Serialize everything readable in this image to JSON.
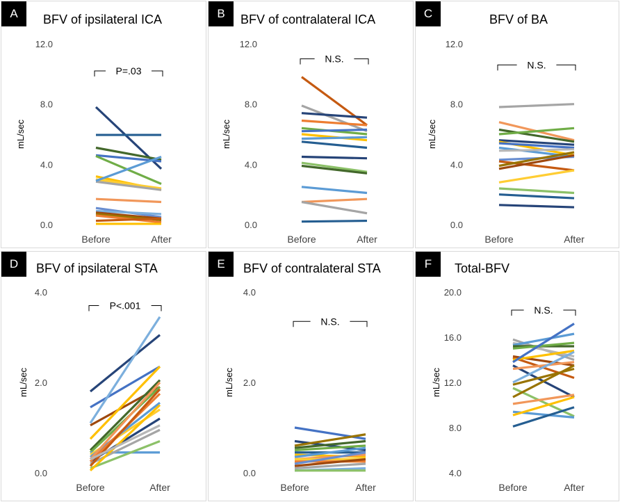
{
  "colors": [
    "#4472C4",
    "#ED7D31",
    "#A5A5A5",
    "#FFC000",
    "#5B9BD5",
    "#70AD47",
    "#264478",
    "#9E480E",
    "#636363",
    "#997300",
    "#255E91",
    "#43682B",
    "#698ED0",
    "#F1975A",
    "#B7B7B7",
    "#FFCD33",
    "#7CAFDD",
    "#8CC168"
  ],
  "chart_data": [
    {
      "id": "A",
      "letter": "A",
      "type": "line",
      "title": "BFV of ipsilateral ICA",
      "ylabel": "mL/sec",
      "categories": [
        "Before",
        "After"
      ],
      "ylim": [
        0,
        12
      ],
      "yticks": [
        "0.0",
        "4.0",
        "8.0",
        "12.0"
      ],
      "ytick_values": [
        0,
        4,
        8,
        12
      ],
      "annotation": "P=.03",
      "annotation_y": 10.2,
      "series": [
        {
          "values": [
            7.8,
            3.7
          ],
          "color": "#264478"
        },
        {
          "values": [
            5.95,
            5.95
          ],
          "color": "#255E91"
        },
        {
          "values": [
            5.1,
            4.3
          ],
          "color": "#43682B"
        },
        {
          "values": [
            4.6,
            4.2
          ],
          "color": "#4472C4"
        },
        {
          "values": [
            4.55,
            2.7
          ],
          "color": "#70AD47"
        },
        {
          "values": [
            3.2,
            2.3
          ],
          "color": "#FFC000"
        },
        {
          "values": [
            3.0,
            2.4
          ],
          "color": "#FFCD33"
        },
        {
          "values": [
            2.85,
            2.3
          ],
          "color": "#A5A5A5"
        },
        {
          "values": [
            2.9,
            4.5
          ],
          "color": "#5B9BD5"
        },
        {
          "values": [
            1.7,
            1.5
          ],
          "color": "#F1975A"
        },
        {
          "values": [
            1.1,
            0.5
          ],
          "color": "#698ED0"
        },
        {
          "values": [
            0.9,
            0.7
          ],
          "color": "#7CAFDD"
        },
        {
          "values": [
            0.8,
            0.4
          ],
          "color": "#9E480E"
        },
        {
          "values": [
            0.7,
            0.3
          ],
          "color": "#997300"
        },
        {
          "values": [
            0.6,
            0.15
          ],
          "color": "#ED7D31"
        },
        {
          "values": [
            0.25,
            0.4
          ],
          "color": "#C55A11"
        },
        {
          "values": [
            0.05,
            0.05
          ],
          "color": "#FFC000"
        }
      ]
    },
    {
      "id": "B",
      "letter": "B",
      "type": "line",
      "title": "BFV of contralateral ICA",
      "ylabel": "mL/sec",
      "categories": [
        "Before",
        "After"
      ],
      "ylim": [
        0,
        12
      ],
      "yticks": [
        "0.0",
        "4.0",
        "8.0",
        "12.0"
      ],
      "ytick_values": [
        0,
        4,
        8,
        12
      ],
      "annotation": "N.S.",
      "annotation_y": 11.0,
      "series": [
        {
          "values": [
            9.8,
            6.6
          ],
          "color": "#C55A11"
        },
        {
          "values": [
            7.9,
            6.2
          ],
          "color": "#A5A5A5"
        },
        {
          "values": [
            7.4,
            7.1
          ],
          "color": "#264478"
        },
        {
          "values": [
            6.9,
            6.6
          ],
          "color": "#ED7D31"
        },
        {
          "values": [
            6.4,
            6.0
          ],
          "color": "#70AD47"
        },
        {
          "values": [
            6.2,
            6.3
          ],
          "color": "#4472C4"
        },
        {
          "values": [
            6.0,
            5.6
          ],
          "color": "#FFC000"
        },
        {
          "values": [
            5.7,
            5.8
          ],
          "color": "#5B9BD5"
        },
        {
          "values": [
            5.5,
            5.1
          ],
          "color": "#255E91"
        },
        {
          "values": [
            4.5,
            4.4
          ],
          "color": "#264478"
        },
        {
          "values": [
            4.1,
            3.5
          ],
          "color": "#8CC168"
        },
        {
          "values": [
            3.9,
            3.4
          ],
          "color": "#43682B"
        },
        {
          "values": [
            2.5,
            2.1
          ],
          "color": "#5B9BD5"
        },
        {
          "values": [
            1.5,
            1.7
          ],
          "color": "#F1975A"
        },
        {
          "values": [
            1.5,
            0.75
          ],
          "color": "#A5A5A5"
        },
        {
          "values": [
            0.2,
            0.25
          ],
          "color": "#255E91"
        }
      ]
    },
    {
      "id": "C",
      "letter": "C",
      "type": "line",
      "title": "BFV of BA",
      "ylabel": "mL/sec",
      "categories": [
        "Before",
        "After"
      ],
      "ylim": [
        0,
        12
      ],
      "yticks": [
        "0.0",
        "4.0",
        "8.0",
        "12.0"
      ],
      "ytick_values": [
        0,
        4,
        8,
        12
      ],
      "annotation": "N.S.",
      "annotation_y": 10.6,
      "series": [
        {
          "values": [
            7.8,
            8.0
          ],
          "color": "#A5A5A5"
        },
        {
          "values": [
            6.8,
            5.6
          ],
          "color": "#F1975A"
        },
        {
          "values": [
            6.3,
            5.5
          ],
          "color": "#43682B"
        },
        {
          "values": [
            6.0,
            6.4
          ],
          "color": "#70AD47"
        },
        {
          "values": [
            5.6,
            5.3
          ],
          "color": "#264478"
        },
        {
          "values": [
            5.5,
            4.6
          ],
          "color": "#FFC000"
        },
        {
          "values": [
            5.4,
            5.1
          ],
          "color": "#4472C4"
        },
        {
          "values": [
            5.1,
            4.5
          ],
          "color": "#5B9BD5"
        },
        {
          "values": [
            4.9,
            5.0
          ],
          "color": "#B7B7B7"
        },
        {
          "values": [
            4.3,
            4.5
          ],
          "color": "#698ED0"
        },
        {
          "values": [
            4.2,
            3.6
          ],
          "color": "#C55A11"
        },
        {
          "values": [
            3.9,
            4.8
          ],
          "color": "#997300"
        },
        {
          "values": [
            3.7,
            4.6
          ],
          "color": "#9E480E"
        },
        {
          "values": [
            2.8,
            3.6
          ],
          "color": "#FFCD33"
        },
        {
          "values": [
            2.4,
            2.1
          ],
          "color": "#8CC168"
        },
        {
          "values": [
            2.0,
            1.75
          ],
          "color": "#255E91"
        },
        {
          "values": [
            1.3,
            1.15
          ],
          "color": "#264478"
        }
      ]
    },
    {
      "id": "D",
      "letter": "D",
      "type": "line",
      "title": "BFV of ipsilateral STA",
      "ylabel": "mL/sec",
      "categories": [
        "Before",
        "After"
      ],
      "ylim": [
        0,
        4
      ],
      "yticks": [
        "0.0",
        "2.0",
        "4.0"
      ],
      "ytick_values": [
        0,
        2,
        4
      ],
      "annotation": "P<.001",
      "annotation_y": 3.7,
      "series": [
        {
          "values": [
            1.8,
            3.05
          ],
          "color": "#264478"
        },
        {
          "values": [
            1.45,
            2.35
          ],
          "color": "#4472C4"
        },
        {
          "values": [
            1.1,
            3.45
          ],
          "color": "#7CAFDD"
        },
        {
          "values": [
            1.05,
            1.9
          ],
          "color": "#9E480E"
        },
        {
          "values": [
            0.75,
            2.35
          ],
          "color": "#FFC000"
        },
        {
          "values": [
            0.5,
            2.05
          ],
          "color": "#43682B"
        },
        {
          "values": [
            0.45,
            1.9
          ],
          "color": "#70AD47"
        },
        {
          "values": [
            0.45,
            0.45
          ],
          "color": "#5B9BD5"
        },
        {
          "values": [
            0.4,
            1.4
          ],
          "color": "#FFCD33"
        },
        {
          "values": [
            0.35,
            1.55
          ],
          "color": "#5B9BD5"
        },
        {
          "values": [
            0.3,
            2.0
          ],
          "color": "#F1975A"
        },
        {
          "values": [
            0.25,
            1.2
          ],
          "color": "#264478"
        },
        {
          "values": [
            0.25,
            1.75
          ],
          "color": "#ED7D31"
        },
        {
          "values": [
            0.2,
            0.95
          ],
          "color": "#A5A5A5"
        },
        {
          "values": [
            0.15,
            1.85
          ],
          "color": "#C55A11"
        },
        {
          "values": [
            0.1,
            0.7
          ],
          "color": "#8CC168"
        },
        {
          "values": [
            0.05,
            1.5
          ],
          "color": "#FFC000"
        },
        {
          "values": [
            0.3,
            1.05
          ],
          "color": "#B7B7B7"
        }
      ]
    },
    {
      "id": "E",
      "letter": "E",
      "type": "line",
      "title": "BFV of contralateral STA",
      "ylabel": "mL/sec",
      "categories": [
        "Before",
        "After"
      ],
      "ylim": [
        0,
        4
      ],
      "yticks": [
        "0.0",
        "2.0",
        "4.0"
      ],
      "ytick_values": [
        0,
        2,
        4
      ],
      "annotation": "N.S.",
      "annotation_y": 3.35,
      "series": [
        {
          "values": [
            1.0,
            0.75
          ],
          "color": "#4472C4"
        },
        {
          "values": [
            0.7,
            0.5
          ],
          "color": "#264478"
        },
        {
          "values": [
            0.6,
            0.85
          ],
          "color": "#997300"
        },
        {
          "values": [
            0.55,
            0.7
          ],
          "color": "#43682B"
        },
        {
          "values": [
            0.5,
            0.6
          ],
          "color": "#70AD47"
        },
        {
          "values": [
            0.45,
            0.45
          ],
          "color": "#255E91"
        },
        {
          "values": [
            0.4,
            0.35
          ],
          "color": "#FFC000"
        },
        {
          "values": [
            0.35,
            0.55
          ],
          "color": "#5B9BD5"
        },
        {
          "values": [
            0.3,
            0.4
          ],
          "color": "#F1975A"
        },
        {
          "values": [
            0.3,
            0.3
          ],
          "color": "#FFCD33"
        },
        {
          "values": [
            0.25,
            0.25
          ],
          "color": "#ED7D31"
        },
        {
          "values": [
            0.2,
            0.45
          ],
          "color": "#698ED0"
        },
        {
          "values": [
            0.15,
            0.3
          ],
          "color": "#9E480E"
        },
        {
          "values": [
            0.1,
            0.2
          ],
          "color": "#A5A5A5"
        },
        {
          "values": [
            0.05,
            0.1
          ],
          "color": "#7CAFDD"
        },
        {
          "values": [
            0.05,
            0.05
          ],
          "color": "#8CC168"
        }
      ]
    },
    {
      "id": "F",
      "letter": "F",
      "type": "line",
      "title": "Total-BFV",
      "ylabel": "mL/sec",
      "categories": [
        "Before",
        "After"
      ],
      "ylim": [
        4,
        20
      ],
      "yticks": [
        "4.0",
        "8.0",
        "12.0",
        "16.0",
        "20.0"
      ],
      "ytick_values": [
        4,
        8,
        12,
        16,
        20
      ],
      "annotation": "N.S.",
      "annotation_y": 18.4,
      "series": [
        {
          "values": [
            15.8,
            14.0
          ],
          "color": "#A5A5A5"
        },
        {
          "values": [
            15.5,
            14.3
          ],
          "color": "#B7B7B7"
        },
        {
          "values": [
            15.3,
            16.3
          ],
          "color": "#5B9BD5"
        },
        {
          "values": [
            15.2,
            15.2
          ],
          "color": "#43682B"
        },
        {
          "values": [
            15.0,
            15.5
          ],
          "color": "#70AD47"
        },
        {
          "values": [
            14.3,
            13.5
          ],
          "color": "#9E480E"
        },
        {
          "values": [
            14.2,
            12.4
          ],
          "color": "#C55A11"
        },
        {
          "values": [
            14.0,
            14.8
          ],
          "color": "#FFC000"
        },
        {
          "values": [
            13.8,
            17.2
          ],
          "color": "#4472C4"
        },
        {
          "values": [
            13.5,
            10.7
          ],
          "color": "#264478"
        },
        {
          "values": [
            13.2,
            13.8
          ],
          "color": "#F1975A"
        },
        {
          "values": [
            12.0,
            14.7
          ],
          "color": "#7CAFDD"
        },
        {
          "values": [
            11.8,
            13.2
          ],
          "color": "#997300"
        },
        {
          "values": [
            11.5,
            9.0
          ],
          "color": "#8CC168"
        },
        {
          "values": [
            10.7,
            13.5
          ],
          "color": "#997300"
        },
        {
          "values": [
            10.1,
            10.9
          ],
          "color": "#F1975A"
        },
        {
          "values": [
            9.4,
            8.9
          ],
          "color": "#5B9BD5"
        },
        {
          "values": [
            9.1,
            10.7
          ],
          "color": "#FFC000"
        },
        {
          "values": [
            8.1,
            9.8
          ],
          "color": "#255E91"
        }
      ]
    }
  ]
}
